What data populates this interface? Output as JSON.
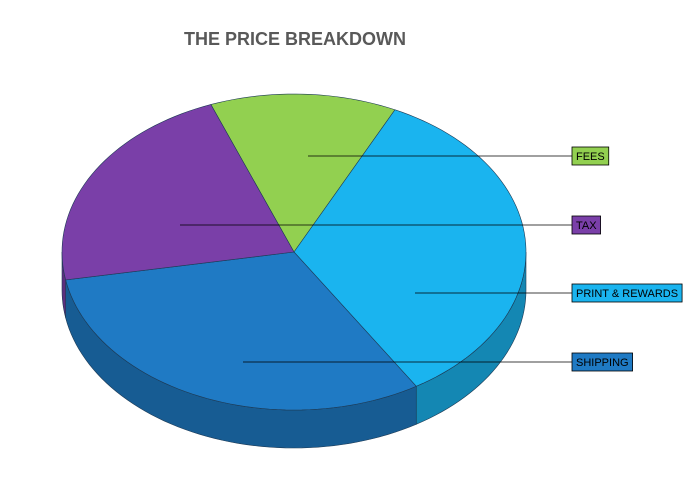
{
  "chart_data": {
    "type": "pie",
    "title": "THE PRICE BREAKDOWN",
    "categories": [
      "FEES",
      "PRINT & REWARDS",
      "SHIPPING",
      "TAX"
    ],
    "values": [
      13,
      34,
      31,
      22
    ],
    "colors": [
      "#92d050",
      "#1ab4ef",
      "#1f7ac4",
      "#7a3fa8"
    ]
  }
}
